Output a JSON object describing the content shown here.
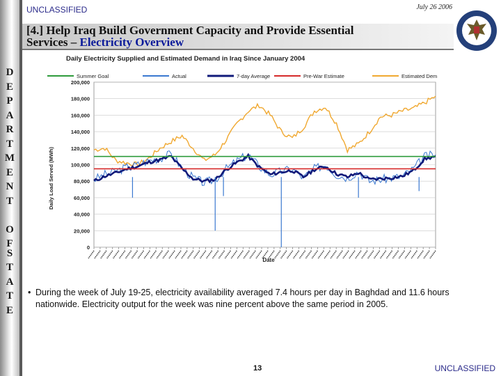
{
  "header": {
    "classification": "UNCLASSIFIED",
    "date": "July 26 2006",
    "title_line1": "[4.] Help Iraq Build Government Capacity and Provide Essential",
    "title_line2_prefix": "Services – ",
    "title_line2_highlight": "Electricity Overview"
  },
  "sidebar": {
    "letters": [
      "D",
      "E",
      "P",
      "A",
      "R",
      "T",
      "M",
      "E",
      "N",
      "T",
      "O",
      "F",
      "S",
      "T",
      "A",
      "T",
      "E"
    ]
  },
  "chart_data": {
    "type": "line",
    "title": "Daily Electricity Supplied and Estimated Demand in Iraq Since January 2004",
    "xlabel": "Date",
    "ylabel": "Daily Load Served (MWh)",
    "ylim": [
      0,
      200000
    ],
    "yticks": [
      "0",
      "20,000",
      "40,000",
      "60,000",
      "80,000",
      "100,000",
      "120,000",
      "140,000",
      "160,000",
      "180,000",
      "200,000"
    ],
    "grid": true,
    "legend": [
      "Summer Goal",
      "Actual",
      "7-day Average",
      "Pre-War Estimate",
      "Estimated Dem"
    ],
    "colors": {
      "goal": "#2e9b3c",
      "actual": "#3a78d0",
      "avg": "#101a7a",
      "prewar": "#d62a2a",
      "demand": "#f0a830"
    },
    "x_index": [
      0,
      4,
      8,
      12,
      16,
      20,
      24,
      28,
      32,
      36,
      40,
      44,
      48,
      52,
      56,
      60,
      64,
      68,
      72,
      76,
      80,
      84,
      88,
      92,
      96,
      100,
      104,
      108,
      112,
      116,
      120,
      124
    ],
    "series": [
      {
        "name": "Summer Goal",
        "values": [
          110000,
          110000,
          110000,
          110000,
          110000,
          110000,
          110000,
          110000,
          110000,
          110000,
          110000,
          110000,
          110000,
          110000,
          110000,
          110000,
          110000,
          110000,
          110000,
          110000,
          110000,
          110000,
          110000,
          110000,
          110000,
          110000,
          110000,
          110000,
          110000,
          110000,
          110000,
          110000
        ]
      },
      {
        "name": "Pre-War Estimate",
        "values": [
          95000,
          95000,
          95000,
          95000,
          95000,
          95000,
          95000,
          95000,
          95000,
          95000,
          95000,
          95000,
          95000,
          95000,
          95000,
          95000,
          95000,
          95000,
          95000,
          95000,
          95000,
          95000,
          95000,
          95000,
          95000,
          95000,
          95000,
          95000,
          95000,
          95000,
          95000,
          95000
        ]
      },
      {
        "name": "Estimated Demand",
        "values": [
          118000,
          120000,
          105000,
          102000,
          100000,
          108000,
          120000,
          128000,
          135000,
          120000,
          105000,
          112000,
          130000,
          150000,
          165000,
          172000,
          160000,
          140000,
          132000,
          145000,
          165000,
          170000,
          150000,
          118000,
          125000,
          140000,
          158000,
          160000,
          165000,
          168000,
          175000,
          183000
        ]
      },
      {
        "name": "Actual",
        "values": [
          82000,
          88000,
          92000,
          97000,
          100000,
          105000,
          108000,
          113000,
          96000,
          84000,
          78000,
          82000,
          95000,
          105000,
          112000,
          98000,
          88000,
          92000,
          95000,
          84000,
          95000,
          100000,
          88000,
          84000,
          92000,
          80000,
          82000,
          84000,
          86000,
          95000,
          110000,
          112000
        ]
      },
      {
        "name": "7-day Average",
        "values": [
          80000,
          86000,
          90000,
          95000,
          98000,
          103000,
          106000,
          110000,
          95000,
          83000,
          80000,
          82000,
          94000,
          103000,
          110000,
          97000,
          88000,
          91000,
          93000,
          85000,
          94000,
          98000,
          89000,
          85000,
          90000,
          82000,
          83000,
          84000,
          86000,
          93000,
          107000,
          110000
        ]
      }
    ],
    "x_tick_count": 56
  },
  "bullets": [
    "During the week of July 19-25, electricity availability averaged 7.4 hours per day in Baghdad and 11.6 hours nationwide.  Electricity output for the week was nine percent above the same period in 2005."
  ],
  "footer": {
    "page": "13",
    "classification": "UNCLASSIFIED"
  }
}
